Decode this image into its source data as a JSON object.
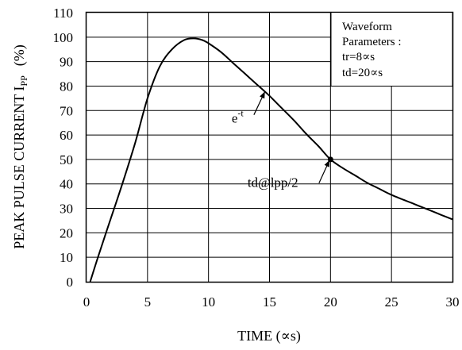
{
  "chart_data": {
    "type": "line",
    "xlabel": "TIME  (∝s)",
    "ylabel_main": "PEAK PULSE CURRENT I",
    "ylabel_sub": "PP",
    "ylabel_unit": "(%)",
    "xlim": [
      0,
      30
    ],
    "ylim": [
      0,
      110
    ],
    "x_ticks": [
      "0",
      "5",
      "10",
      "15",
      "20",
      "25",
      "30"
    ],
    "y_ticks": [
      "0",
      "10",
      "20",
      "30",
      "40",
      "50",
      "60",
      "70",
      "80",
      "90",
      "100",
      "110"
    ],
    "grid": true,
    "series": [
      {
        "x": [
          0.3,
          1,
          2,
          3,
          4,
          5,
          6,
          7,
          8,
          8.8,
          9.5,
          10,
          11,
          12,
          13,
          14,
          15,
          16,
          17,
          18,
          19,
          20,
          21,
          22,
          23,
          24,
          25,
          26,
          27,
          28,
          29,
          30
        ],
        "values": [
          0,
          11,
          26,
          41,
          57,
          75,
          88,
          95,
          98.8,
          99.5,
          98.8,
          97.5,
          94,
          89.5,
          85,
          80.5,
          76,
          71,
          66,
          60.5,
          55.5,
          50,
          46.5,
          43.5,
          40.5,
          38,
          35.5,
          33.5,
          31.5,
          29.5,
          27.5,
          25.5
        ]
      }
    ],
    "marker": {
      "x": 20,
      "y": 50
    },
    "annotations": [
      {
        "text": "e",
        "sup": "-t",
        "x": 11.9,
        "y": 65,
        "arrow_to_x": 14.6,
        "arrow_to_y": 77.5
      },
      {
        "text": "td@lpp/2",
        "x": 13.2,
        "y": 38.7,
        "arrow_to_x": 19.9,
        "arrow_to_y": 49.5
      }
    ],
    "legend_box": {
      "lines": [
        "Waveform",
        "Parameters :",
        "tr=8∝s",
        "td=20∝s"
      ]
    }
  }
}
